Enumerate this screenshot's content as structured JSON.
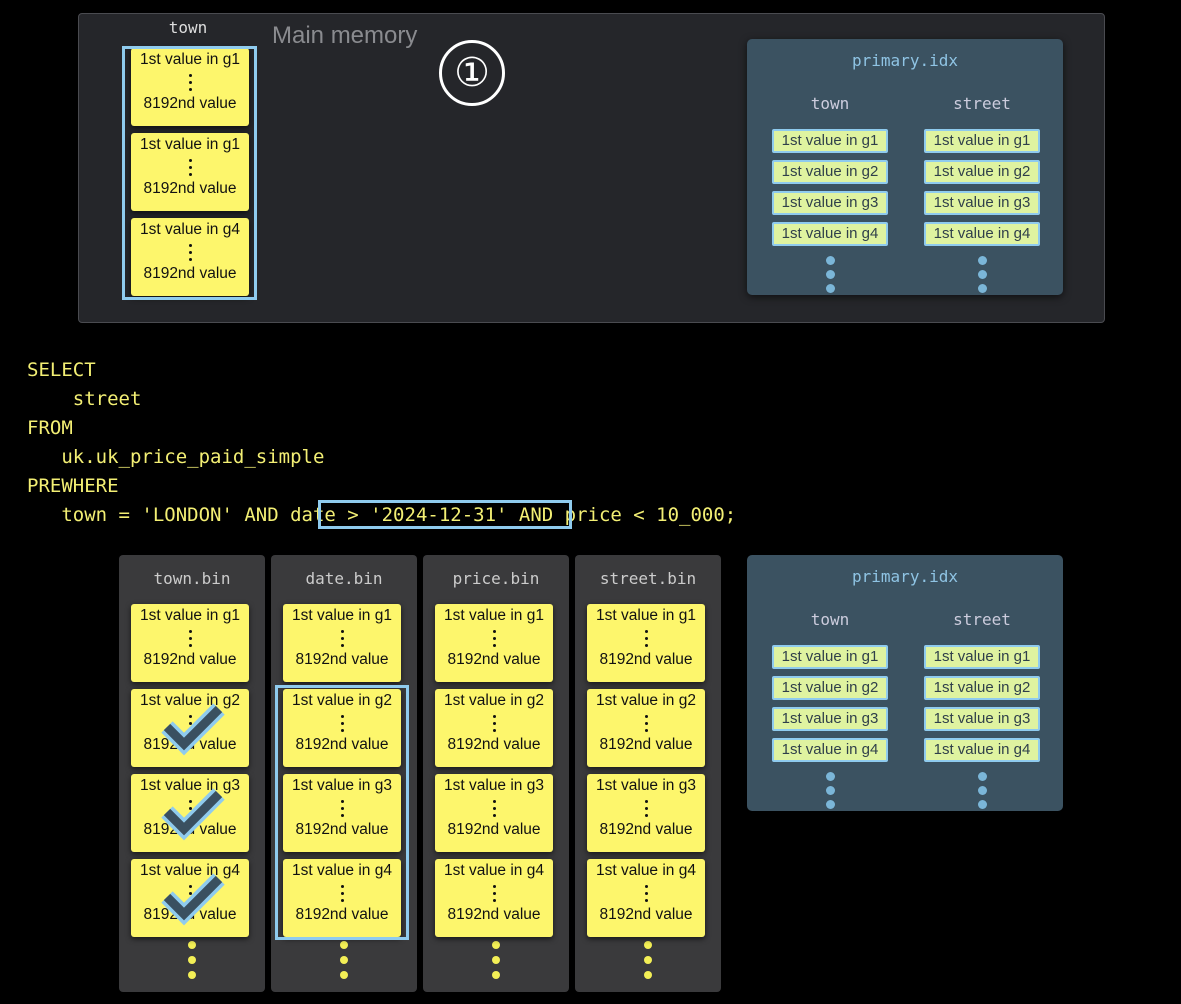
{
  "main_memory": {
    "title": "Main memory",
    "column": "town",
    "granules": [
      {
        "first": "1st value in g1",
        "last": "8192nd value"
      },
      {
        "first": "1st value in g1",
        "last": "8192nd value"
      },
      {
        "first": "1st value in g4",
        "last": "8192nd value"
      }
    ],
    "step_label": "①"
  },
  "primary_index": {
    "title": "primary.idx",
    "columns": [
      {
        "name": "town",
        "marks": [
          "1st value in g1",
          "1st value in g2",
          "1st value in g3",
          "1st value in g4"
        ]
      },
      {
        "name": "street",
        "marks": [
          "1st value in g1",
          "1st value in g2",
          "1st value in g3",
          "1st value in g4"
        ]
      }
    ]
  },
  "query": {
    "lines": [
      "SELECT",
      "    street",
      "FROM",
      "   uk.uk_price_paid_simple",
      "PREWHERE"
    ],
    "last_line_before": "   town = 'LONDON' AND ",
    "highlighted": "date > '2024-12-31'",
    "last_line_after": " AND price < 10_000;"
  },
  "bins": [
    {
      "name": "town.bin",
      "granules": [
        "1st value in g1",
        "1st value in g2",
        "1st value in g3",
        "1st value in g4"
      ],
      "last": "8192nd value",
      "checked": [
        1,
        2,
        3
      ]
    },
    {
      "name": "date.bin",
      "granules": [
        "1st value in g1",
        "1st value in g2",
        "1st value in g3",
        "1st value in g4"
      ],
      "last": "8192nd value",
      "selected": [
        1,
        2,
        3
      ]
    },
    {
      "name": "price.bin",
      "granules": [
        "1st value in g1",
        "1st value in g2",
        "1st value in g3",
        "1st value in g4"
      ],
      "last": "8192nd value"
    },
    {
      "name": "street.bin",
      "granules": [
        "1st value in g1",
        "1st value in g2",
        "1st value in g3",
        "1st value in g4"
      ],
      "last": "8192nd value"
    }
  ],
  "colors": {
    "granule": "#fdf66c",
    "highlight": "#8fcbee",
    "index_panel": "#3b5261",
    "sql": "#f3ef74"
  }
}
